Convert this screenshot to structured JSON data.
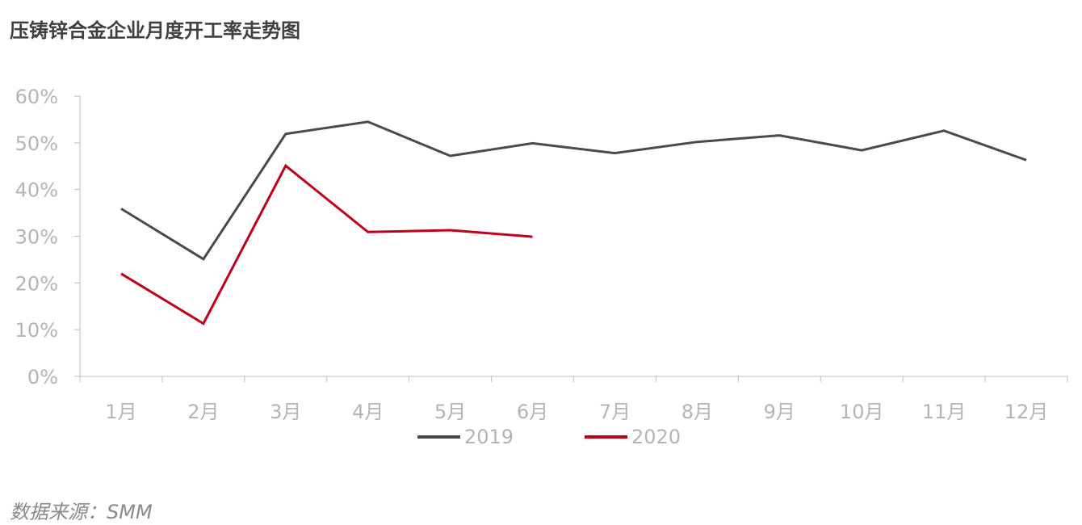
{
  "title": "压铸锌合金企业月度开工率走势图",
  "source": "数据来源：SMM",
  "chart_data": {
    "type": "line",
    "title": "压铸锌合金企业月度开工率走势图",
    "xlabel": "",
    "ylabel": "",
    "categories": [
      "1月",
      "2月",
      "3月",
      "4月",
      "5月",
      "6月",
      "7月",
      "8月",
      "9月",
      "10月",
      "11月",
      "12月"
    ],
    "y_ticks": [
      "0%",
      "10%",
      "20%",
      "30%",
      "40%",
      "50%",
      "60%"
    ],
    "ylim": [
      0,
      60
    ],
    "grid": false,
    "legend_position": "bottom",
    "series": [
      {
        "name": "2019",
        "color": "#4a4a4a",
        "values": [
          35.9,
          25.1,
          51.9,
          54.5,
          47.2,
          49.9,
          47.8,
          50.2,
          51.6,
          48.4,
          52.6,
          46.3
        ]
      },
      {
        "name": "2020",
        "color": "#c00018",
        "values": [
          22.0,
          11.3,
          45.1,
          30.9,
          31.3,
          29.9,
          null,
          null,
          null,
          null,
          null,
          null
        ]
      }
    ]
  }
}
